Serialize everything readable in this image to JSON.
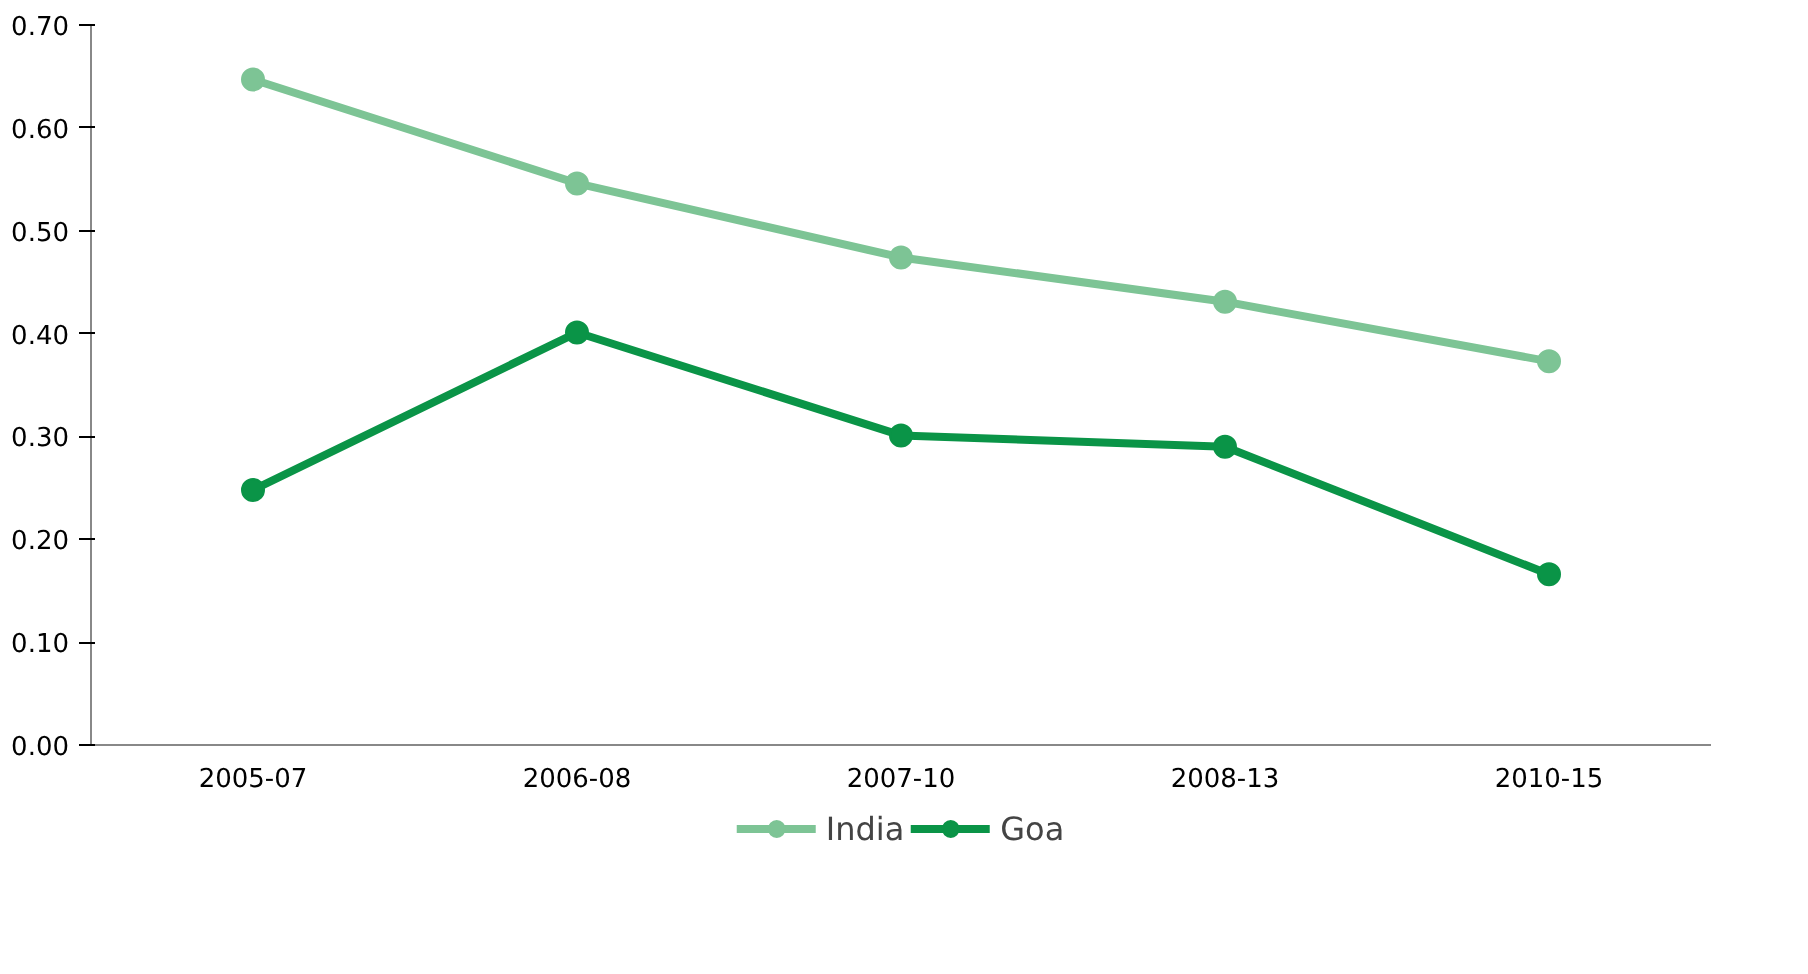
{
  "chart_data": {
    "type": "line",
    "categories": [
      "2005-07",
      "2006-08",
      "2007-10",
      "2008-13",
      "2010-15"
    ],
    "series": [
      {
        "name": "India",
        "color": "#7dc495",
        "values": [
          0.647,
          0.546,
          0.474,
          0.431,
          0.373
        ]
      },
      {
        "name": "Goa",
        "color": "#0a9447",
        "values": [
          0.248,
          0.401,
          0.301,
          0.29,
          0.166
        ]
      }
    ],
    "ylim": [
      0,
      0.7
    ],
    "yticks": [
      {
        "value": 0,
        "label": "0.00"
      },
      {
        "value": 0.1,
        "label": "0.10"
      },
      {
        "value": 0.2,
        "label": "0.20"
      },
      {
        "value": 0.3,
        "label": "0.30"
      },
      {
        "value": 0.4,
        "label": "0.40"
      },
      {
        "value": 0.5,
        "label": "0.50"
      },
      {
        "value": 0.6,
        "label": "0.60"
      },
      {
        "value": 0.7,
        "label": "0.70"
      }
    ],
    "grid": false,
    "legend": "bottom",
    "marker": "circle",
    "line_style": "solid"
  }
}
